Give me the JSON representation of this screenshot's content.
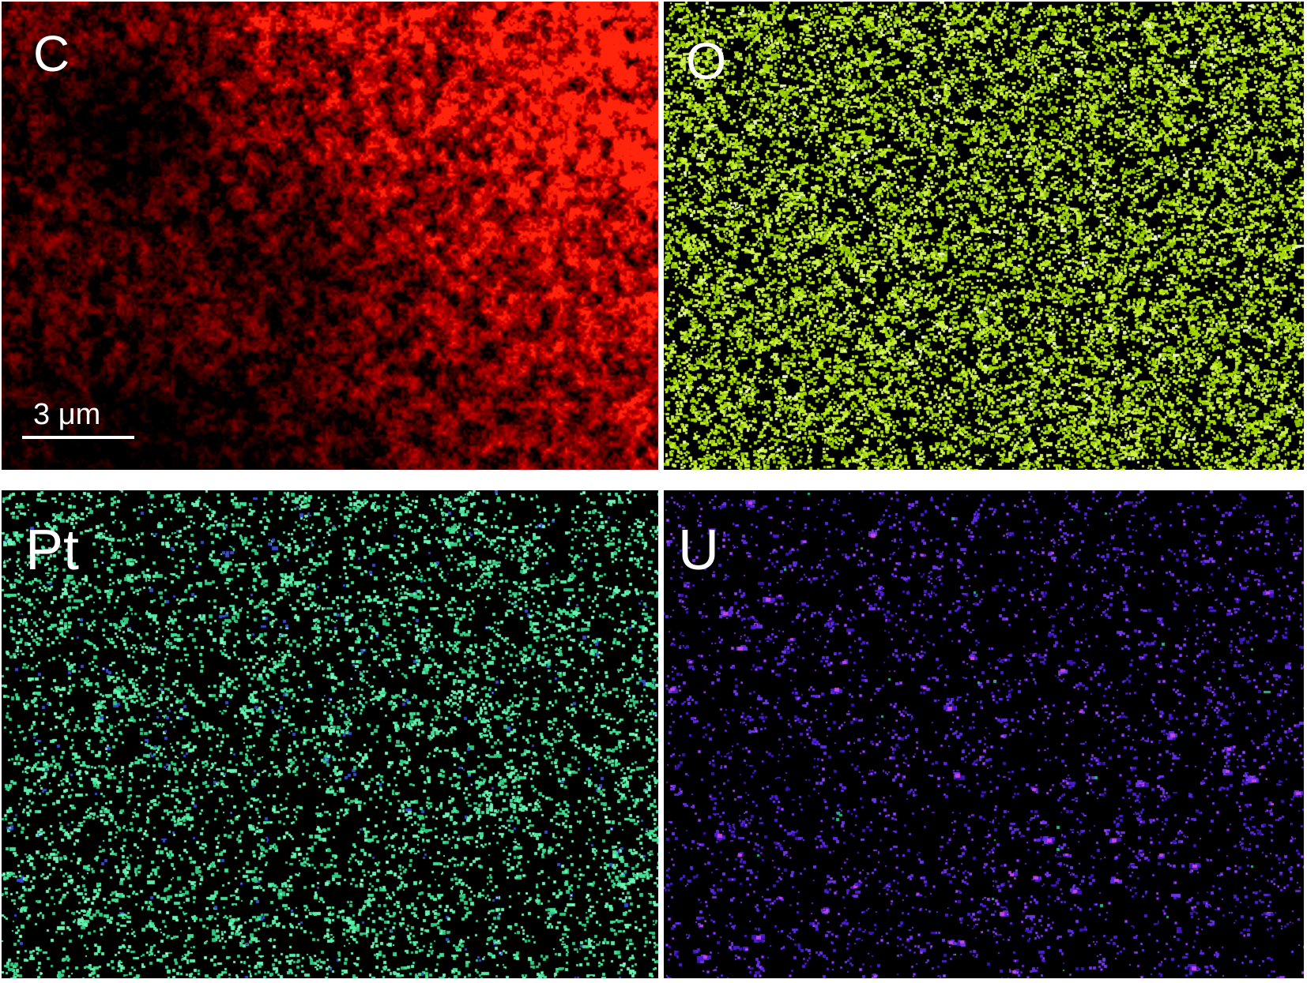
{
  "panels": [
    {
      "id": "carbon",
      "label": "C",
      "position": "top-left",
      "style": "cloud",
      "map_color": "#e60f0f",
      "background": "#000000",
      "render": {
        "seed": 101
      }
    },
    {
      "id": "oxygen",
      "label": "O",
      "position": "top-right",
      "style": "speckle",
      "map_color": "#b3e01a",
      "background": "#000000",
      "render": {
        "seed": 202,
        "density": 0.37,
        "colors": [
          "#a4d800",
          "#bce922",
          "#cff04f",
          "#8fc400"
        ],
        "accent": "#e8f6c0",
        "accent_p": 0.05,
        "min": 2.4,
        "max": 4.2,
        "run": 0.5,
        "core": null,
        "core_p": 0,
        "blob_p": 0
      }
    },
    {
      "id": "platinum",
      "label": "Pt",
      "position": "bottom-left",
      "style": "speckle",
      "map_color": "#46e49a",
      "background": "#000000",
      "render": {
        "seed": 303,
        "density": 0.135,
        "colors": [
          "#3fe093",
          "#58eda6",
          "#2ec87e",
          "#6df2b4"
        ],
        "accent": "#3a4ad0",
        "accent_p": 0.045,
        "min": 2.4,
        "max": 4.6,
        "run": 0.3,
        "core": "#c8ffe6",
        "core_p": 0.1,
        "blob_p": 0
      }
    },
    {
      "id": "uranium",
      "label": "U",
      "position": "bottom-right",
      "style": "speckle",
      "map_color": "#5526d8",
      "background": "#000000",
      "render": {
        "seed": 404,
        "density": 0.075,
        "colors": [
          "#4a1cd4",
          "#5c2ae2",
          "#3b14b4",
          "#6d36e8"
        ],
        "accent": "#17c288",
        "accent_p": 0.01,
        "min": 2.0,
        "max": 4.0,
        "run": 0.25,
        "core": "#cc44e0",
        "core_p": 0.4,
        "blob_p": 0.02
      }
    }
  ],
  "scale_bar": {
    "label": "3 μm",
    "color": "#ffffff"
  },
  "label_color": "#ffffff",
  "frame_color": "#ffffff"
}
